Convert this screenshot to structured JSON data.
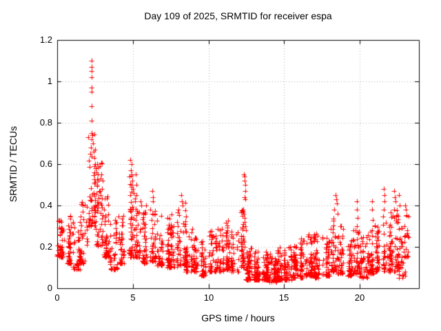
{
  "figure": {
    "background": "#ffffff",
    "text_color": "#000000"
  },
  "chart_data": {
    "type": "scatter",
    "title": "Day 109 of 2025, SRMTID for receiver espa",
    "xlabel": "GPS time / hours",
    "ylabel": "SRMTID / TECUs",
    "xlim": [
      0,
      23.9
    ],
    "ylim": [
      0,
      1.2
    ],
    "xticks": [
      0,
      5,
      10,
      15,
      20
    ],
    "xtick_labels": [
      "0",
      "5",
      "10",
      "15",
      "20"
    ],
    "yticks": [
      0,
      0.2,
      0.4,
      0.6,
      0.8,
      1,
      1.2
    ],
    "ytick_labels": [
      "0",
      "0.2",
      "0.4",
      "0.6",
      "0.8",
      "1",
      "1.2"
    ],
    "grid": true,
    "grid_style": "dotted",
    "legend_position": "none",
    "marker": {
      "shape": "plus",
      "size": 7,
      "color": "#ff0000"
    },
    "colors": {
      "marker": "#ff0000",
      "grid": "#b0b0b0",
      "axis": "#000000",
      "background": "#ffffff"
    },
    "series_name": "SRMTID",
    "bin_format": [
      "x_start",
      "x_end",
      "count",
      "y_min",
      "y_max"
    ],
    "density_bins": [
      [
        0.0,
        0.5,
        45,
        0.15,
        0.38
      ],
      [
        0.5,
        1.0,
        45,
        0.12,
        0.35
      ],
      [
        1.0,
        1.5,
        40,
        0.09,
        0.32
      ],
      [
        1.5,
        2.0,
        42,
        0.12,
        0.45
      ],
      [
        2.0,
        2.5,
        50,
        0.3,
        0.75
      ],
      [
        2.5,
        3.0,
        48,
        0.2,
        0.62
      ],
      [
        3.0,
        3.5,
        45,
        0.15,
        0.45
      ],
      [
        3.5,
        4.0,
        40,
        0.09,
        0.33
      ],
      [
        4.0,
        4.5,
        42,
        0.12,
        0.38
      ],
      [
        4.5,
        5.0,
        45,
        0.15,
        0.55
      ],
      [
        5.0,
        5.5,
        45,
        0.15,
        0.45
      ],
      [
        5.5,
        6.0,
        42,
        0.12,
        0.4
      ],
      [
        6.0,
        6.5,
        42,
        0.13,
        0.44
      ],
      [
        6.5,
        7.0,
        40,
        0.11,
        0.38
      ],
      [
        7.0,
        7.5,
        40,
        0.1,
        0.34
      ],
      [
        7.5,
        8.0,
        42,
        0.1,
        0.4
      ],
      [
        8.0,
        8.5,
        42,
        0.11,
        0.42
      ],
      [
        8.5,
        9.0,
        40,
        0.08,
        0.3
      ],
      [
        9.0,
        9.5,
        40,
        0.08,
        0.26
      ],
      [
        9.5,
        10.0,
        40,
        0.06,
        0.23
      ],
      [
        10.0,
        10.5,
        40,
        0.08,
        0.28
      ],
      [
        10.5,
        11.0,
        40,
        0.08,
        0.3
      ],
      [
        11.0,
        11.5,
        40,
        0.09,
        0.33
      ],
      [
        11.5,
        12.0,
        40,
        0.08,
        0.28
      ],
      [
        12.0,
        12.5,
        42,
        0.1,
        0.38
      ],
      [
        12.5,
        13.0,
        55,
        0.04,
        0.2
      ],
      [
        13.0,
        13.5,
        58,
        0.04,
        0.18
      ],
      [
        13.5,
        14.0,
        58,
        0.04,
        0.18
      ],
      [
        14.0,
        14.5,
        58,
        0.03,
        0.17
      ],
      [
        14.5,
        15.0,
        56,
        0.04,
        0.2
      ],
      [
        15.0,
        15.5,
        56,
        0.04,
        0.2
      ],
      [
        15.5,
        16.0,
        56,
        0.05,
        0.21
      ],
      [
        16.0,
        16.5,
        52,
        0.05,
        0.25
      ],
      [
        16.5,
        17.0,
        52,
        0.06,
        0.28
      ],
      [
        17.0,
        17.5,
        46,
        0.05,
        0.28
      ],
      [
        17.5,
        18.0,
        46,
        0.06,
        0.26
      ],
      [
        18.0,
        18.5,
        44,
        0.08,
        0.35
      ],
      [
        18.5,
        19.0,
        44,
        0.07,
        0.3
      ],
      [
        19.0,
        19.5,
        42,
        0.06,
        0.25
      ],
      [
        19.5,
        20.0,
        42,
        0.07,
        0.28
      ],
      [
        20.0,
        20.5,
        42,
        0.05,
        0.25
      ],
      [
        20.5,
        21.0,
        42,
        0.07,
        0.28
      ],
      [
        21.0,
        21.5,
        44,
        0.08,
        0.32
      ],
      [
        21.5,
        22.0,
        46,
        0.08,
        0.35
      ],
      [
        22.0,
        22.5,
        48,
        0.08,
        0.38
      ],
      [
        22.5,
        23.0,
        46,
        0.05,
        0.35
      ],
      [
        23.0,
        23.3,
        15,
        0.15,
        0.38
      ]
    ],
    "outlier_points": [
      [
        2.28,
        1.1
      ],
      [
        2.28,
        1.07
      ],
      [
        2.3,
        1.05
      ],
      [
        2.28,
        1.02
      ],
      [
        2.3,
        0.97
      ],
      [
        2.28,
        0.95
      ],
      [
        2.3,
        0.88
      ],
      [
        2.28,
        0.81
      ],
      [
        2.26,
        0.75
      ],
      [
        2.32,
        0.74
      ],
      [
        2.3,
        0.72
      ],
      [
        2.35,
        0.7
      ],
      [
        2.25,
        0.68
      ],
      [
        2.4,
        0.66
      ],
      [
        2.2,
        0.65
      ],
      [
        2.45,
        0.63
      ],
      [
        2.5,
        0.6
      ],
      [
        2.55,
        0.58
      ],
      [
        2.6,
        0.56
      ],
      [
        2.65,
        0.6
      ],
      [
        2.7,
        0.55
      ],
      [
        2.75,
        0.52
      ],
      [
        2.9,
        0.55
      ],
      [
        3.0,
        0.52
      ],
      [
        4.85,
        0.62
      ],
      [
        4.9,
        0.6
      ],
      [
        4.88,
        0.57
      ],
      [
        4.92,
        0.55
      ],
      [
        4.95,
        0.52
      ],
      [
        4.9,
        0.5
      ],
      [
        5.0,
        0.48
      ],
      [
        5.05,
        0.46
      ],
      [
        5.2,
        0.55
      ],
      [
        5.22,
        0.5
      ],
      [
        5.25,
        0.45
      ],
      [
        5.5,
        0.42
      ],
      [
        5.55,
        0.4
      ],
      [
        6.3,
        0.47
      ],
      [
        6.32,
        0.44
      ],
      [
        6.35,
        0.42
      ],
      [
        8.2,
        0.45
      ],
      [
        8.25,
        0.42
      ],
      [
        8.3,
        0.4
      ],
      [
        12.35,
        0.55
      ],
      [
        12.38,
        0.54
      ],
      [
        12.4,
        0.52
      ],
      [
        12.42,
        0.5
      ],
      [
        12.45,
        0.47
      ],
      [
        12.4,
        0.44
      ],
      [
        12.42,
        0.43
      ],
      [
        12.3,
        0.38
      ],
      [
        12.35,
        0.36
      ],
      [
        12.38,
        0.34
      ],
      [
        12.4,
        0.32
      ],
      [
        12.45,
        0.3
      ],
      [
        12.5,
        0.28
      ],
      [
        12.32,
        0.25
      ],
      [
        12.36,
        0.23
      ],
      [
        18.4,
        0.45
      ],
      [
        18.45,
        0.43
      ],
      [
        18.5,
        0.41
      ],
      [
        18.3,
        0.38
      ],
      [
        18.55,
        0.36
      ],
      [
        19.8,
        0.42
      ],
      [
        19.82,
        0.38
      ],
      [
        19.85,
        0.34
      ],
      [
        19.8,
        0.3
      ],
      [
        20.8,
        0.42
      ],
      [
        20.82,
        0.38
      ],
      [
        20.85,
        0.33
      ],
      [
        20.8,
        0.28
      ],
      [
        21.6,
        0.48
      ],
      [
        21.62,
        0.45
      ],
      [
        21.65,
        0.42
      ],
      [
        21.6,
        0.38
      ],
      [
        22.3,
        0.47
      ],
      [
        22.32,
        0.44
      ],
      [
        22.35,
        0.42
      ],
      [
        22.3,
        0.38
      ],
      [
        22.6,
        0.45
      ],
      [
        22.62,
        0.4
      ],
      [
        23.0,
        0.4
      ],
      [
        23.05,
        0.38
      ],
      [
        23.1,
        0.35
      ],
      [
        22.95,
        0.3
      ],
      [
        23.15,
        0.28
      ],
      [
        23.2,
        0.25
      ]
    ],
    "seed": 109
  }
}
